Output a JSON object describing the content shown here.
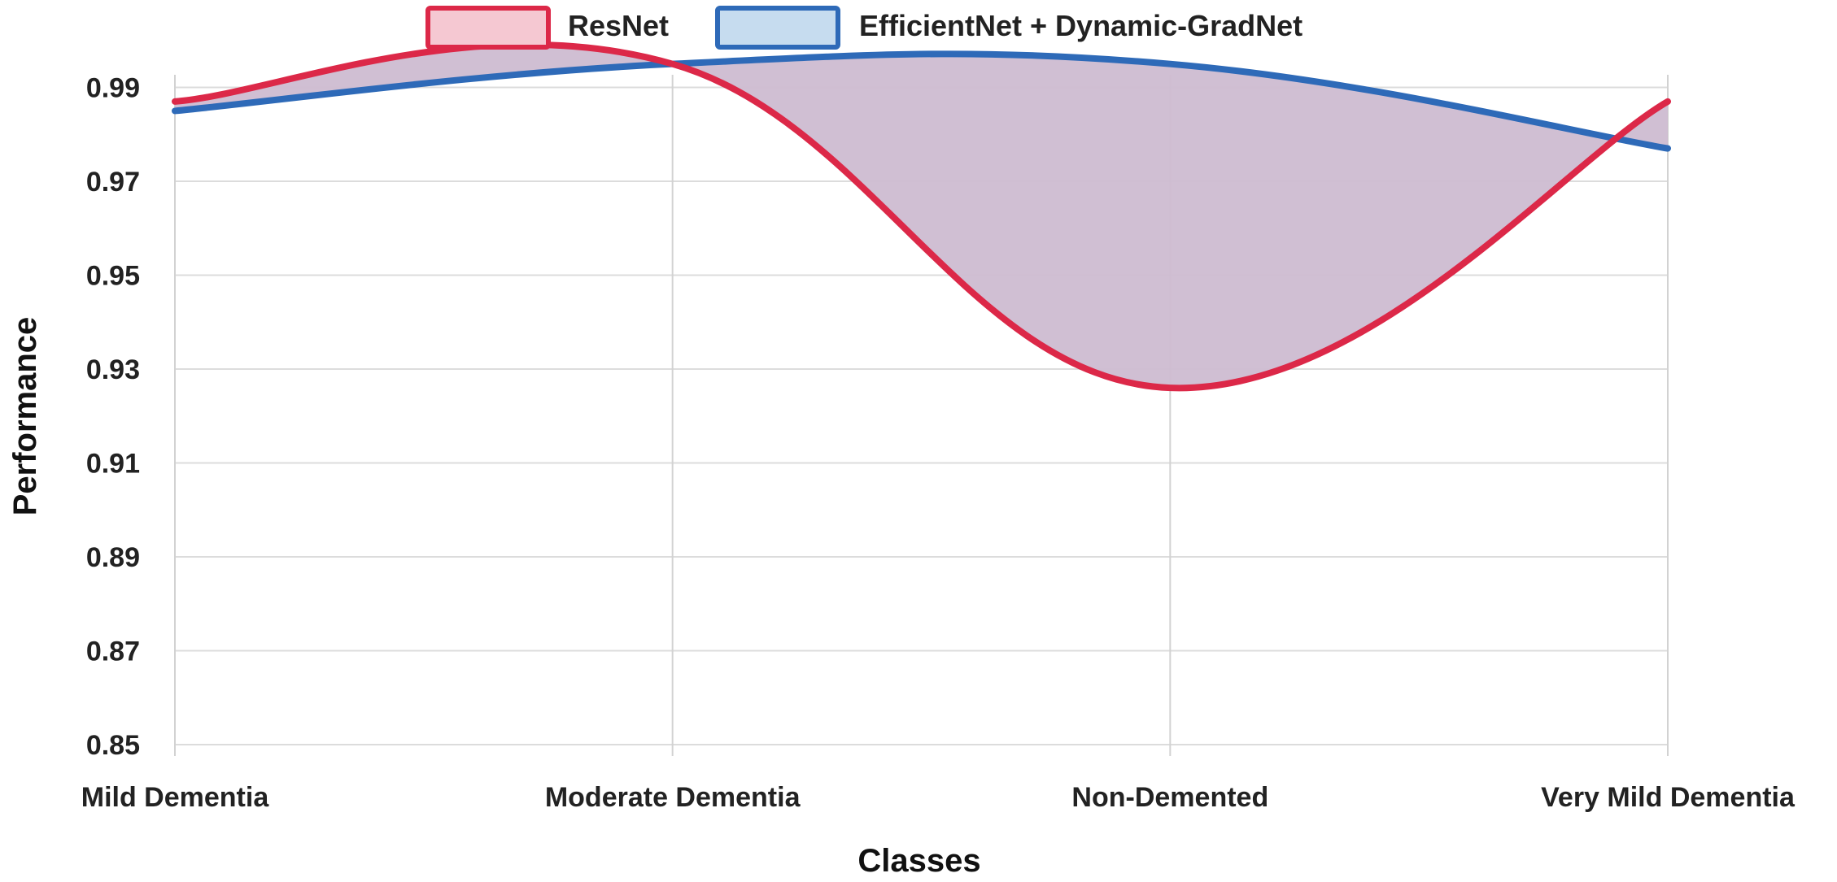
{
  "chart_data": {
    "type": "area",
    "categories": [
      "Mild Dementia",
      "Moderate Dementia",
      "Non-Demented",
      "Very Mild Dementia"
    ],
    "series": [
      {
        "name": "ResNet",
        "values": [
          0.987,
          0.995,
          0.926,
          0.987
        ],
        "color": "#dc2848",
        "fill": "#f5c8d2"
      },
      {
        "name": "EfficientNet + Dynamic-GradNet",
        "values": [
          0.985,
          0.995,
          0.995,
          0.977
        ],
        "color": "#2e6ab8",
        "fill": "#c6dcef"
      }
    ],
    "overlap_fill": "#cdbcd1",
    "xlabel": "Classes",
    "ylabel": "Performance",
    "ylim": [
      0.85,
      1.0
    ],
    "yticks": [
      "0.85",
      "0.87",
      "0.89",
      "0.91",
      "0.93",
      "0.95",
      "0.97",
      "0.99"
    ],
    "grid": true,
    "legend_position": "top-center"
  }
}
